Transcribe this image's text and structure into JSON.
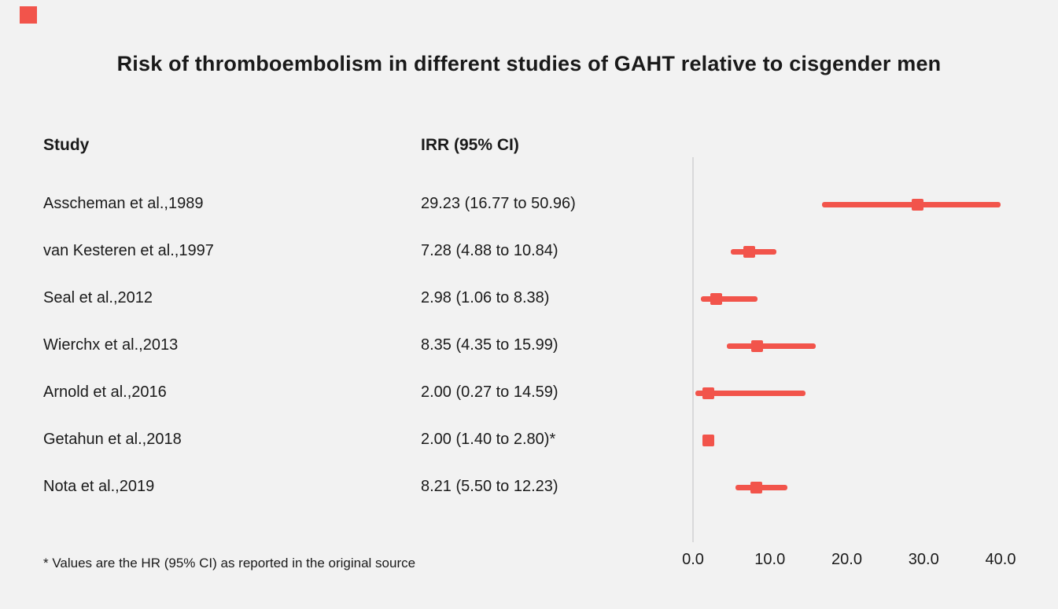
{
  "title": "Risk of thromboembolism in different studies of GAHT relative to cisgender men",
  "footnote": "* Values are the HR (95% CI) as reported in the original source",
  "columns": {
    "study": "Study",
    "irr": "IRR (95% CI)"
  },
  "colors": {
    "accent": "#f2544b",
    "background": "#f2f2f2",
    "axis": "#d9d9da",
    "text": "#1a1a1a"
  },
  "icons": {
    "brand_mark": "red-square"
  },
  "chart_data": {
    "type": "scatter",
    "subtype": "forest-plot",
    "title": "Risk of thromboembolism in different studies of GAHT relative to cisgender men",
    "xlabel": "",
    "ylabel": "",
    "xlim": [
      0,
      40
    ],
    "x_ticks": [
      0,
      10,
      20,
      30,
      40
    ],
    "x_tick_labels": [
      "0.0",
      "10.0",
      "20.0",
      "30.0",
      "40.0"
    ],
    "grid": false,
    "legend": "none",
    "marker_shape": "square",
    "studies": [
      {
        "label": "Asscheman et al.,1989",
        "irr_text": "29.23 (16.77 to 50.96)",
        "estimate": 29.23,
        "ci_low": 16.77,
        "ci_high": 50.96
      },
      {
        "label": "van Kesteren et al.,1997",
        "irr_text": "7.28 (4.88 to 10.84)",
        "estimate": 7.28,
        "ci_low": 4.88,
        "ci_high": 10.84
      },
      {
        "label": "Seal et al.,2012",
        "irr_text": "2.98 (1.06 to 8.38)",
        "estimate": 2.98,
        "ci_low": 1.06,
        "ci_high": 8.38
      },
      {
        "label": "Wierchx et al.,2013",
        "irr_text": "8.35 (4.35 to 15.99)",
        "estimate": 8.35,
        "ci_low": 4.35,
        "ci_high": 15.99
      },
      {
        "label": "Arnold et al.,2016",
        "irr_text": "2.00 (0.27 to 14.59)",
        "estimate": 2.0,
        "ci_low": 0.27,
        "ci_high": 14.59
      },
      {
        "label": "Getahun et al.,2018",
        "irr_text": "2.00 (1.40 to 2.80)*",
        "estimate": 2.0,
        "ci_low": 1.4,
        "ci_high": 2.8
      },
      {
        "label": "Nota et al.,2019",
        "irr_text": "8.21 (5.50 to 12.23)",
        "estimate": 8.21,
        "ci_low": 5.5,
        "ci_high": 12.23
      }
    ]
  }
}
